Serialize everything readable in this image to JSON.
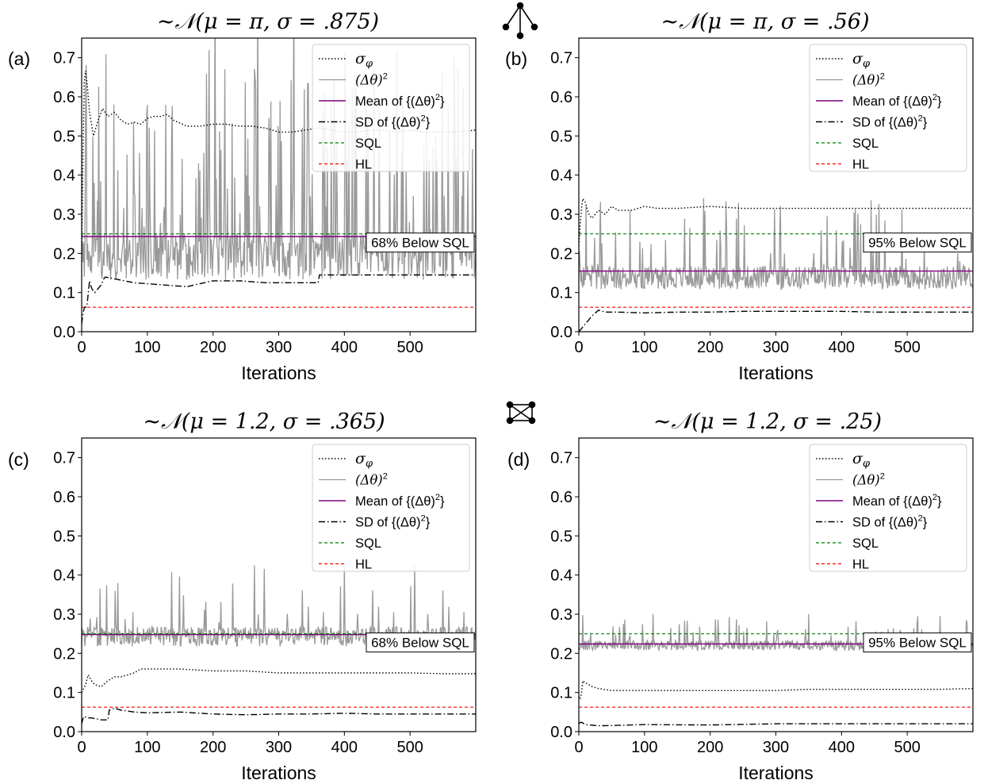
{
  "chart_data": [
    {
      "type": "line",
      "panel_label": "(a)",
      "title": "∼𝒩(μ = π, σ = .875)",
      "xlabel": "Iterations",
      "ylabel": "",
      "xlim": [
        0,
        600
      ],
      "ylim": [
        0.0,
        0.75
      ],
      "xticks": [
        0,
        100,
        200,
        300,
        400,
        500
      ],
      "yticks": [
        0.0,
        0.1,
        0.2,
        0.3,
        0.4,
        0.5,
        0.6,
        0.7
      ],
      "legend_position": "top-right",
      "annotation": "68% Below SQL",
      "constants": {
        "mean": 0.243,
        "sql": 0.25,
        "hl": 0.0625
      },
      "noise": {
        "base": 0.155,
        "amp": 0.12,
        "spike": 0.5,
        "spikeProb": 0.22,
        "seed": 11
      },
      "series": [
        {
          "name": "σ_φ",
          "style": "dotted",
          "color": "#000000",
          "x": [
            0,
            3,
            5,
            8,
            12,
            18,
            25,
            32,
            40,
            50,
            60,
            70,
            80,
            90,
            100,
            110,
            120,
            130,
            140,
            160,
            180,
            200,
            220,
            240,
            260,
            280,
            300,
            320,
            340,
            360,
            380,
            400,
            420,
            440,
            460,
            480,
            500,
            520,
            540,
            560,
            580,
            600
          ],
          "y": [
            0.18,
            0.6,
            0.68,
            0.64,
            0.56,
            0.5,
            0.54,
            0.57,
            0.55,
            0.56,
            0.54,
            0.53,
            0.535,
            0.53,
            0.545,
            0.55,
            0.55,
            0.555,
            0.54,
            0.525,
            0.525,
            0.53,
            0.53,
            0.525,
            0.525,
            0.52,
            0.51,
            0.51,
            0.515,
            0.52,
            0.515,
            0.51,
            0.51,
            0.515,
            0.515,
            0.51,
            0.515,
            0.51,
            0.51,
            0.51,
            0.512,
            0.515
          ]
        },
        {
          "name": "(Δθ)²",
          "style": "noise",
          "color": "#999999"
        },
        {
          "name": "Mean of {(Δθ)²}",
          "style": "solid",
          "color": "#800080",
          "constant": 0.243
        },
        {
          "name": "SD of {(Δθ)²}",
          "style": "dashdot",
          "color": "#000000",
          "x": [
            0,
            3,
            8,
            12,
            15,
            20,
            30,
            35,
            50,
            80,
            120,
            160,
            200,
            240,
            280,
            320,
            360,
            362,
            380,
            400,
            440,
            480,
            520,
            560,
            600
          ],
          "y": [
            0.02,
            0.06,
            0.065,
            0.13,
            0.11,
            0.1,
            0.12,
            0.14,
            0.135,
            0.125,
            0.12,
            0.115,
            0.13,
            0.13,
            0.125,
            0.125,
            0.125,
            0.145,
            0.145,
            0.145,
            0.145,
            0.145,
            0.145,
            0.145,
            0.145
          ]
        },
        {
          "name": "SQL",
          "style": "dashed",
          "color": "#008000",
          "constant": 0.25
        },
        {
          "name": "HL",
          "style": "dashed",
          "color": "#ff0000",
          "constant": 0.0625
        }
      ]
    },
    {
      "type": "line",
      "panel_label": "(b)",
      "title": "∼𝒩(μ = π, σ = .56)",
      "xlabel": "Iterations",
      "ylabel": "",
      "xlim": [
        0,
        600
      ],
      "ylim": [
        0.0,
        0.75
      ],
      "xticks": [
        0,
        100,
        200,
        300,
        400,
        500
      ],
      "yticks": [
        0.0,
        0.1,
        0.2,
        0.3,
        0.4,
        0.5,
        0.6,
        0.7
      ],
      "legend_position": "top-right",
      "annotation": "95% Below SQL",
      "constants": {
        "mean": 0.155,
        "sql": 0.25,
        "hl": 0.0625
      },
      "noise": {
        "base": 0.12,
        "amp": 0.06,
        "spike": 0.2,
        "spikeProb": 0.1,
        "seed": 23
      },
      "series": [
        {
          "name": "σ_φ",
          "style": "dotted",
          "color": "#000000",
          "x": [
            0,
            3,
            6,
            10,
            15,
            20,
            30,
            40,
            50,
            60,
            80,
            100,
            120,
            150,
            200,
            250,
            300,
            350,
            400,
            450,
            500,
            550,
            600
          ],
          "y": [
            0.22,
            0.3,
            0.34,
            0.33,
            0.3,
            0.29,
            0.31,
            0.3,
            0.32,
            0.31,
            0.31,
            0.32,
            0.315,
            0.315,
            0.32,
            0.315,
            0.315,
            0.315,
            0.315,
            0.315,
            0.315,
            0.315,
            0.315
          ]
        },
        {
          "name": "(Δθ)²",
          "style": "noise",
          "color": "#999999"
        },
        {
          "name": "Mean of {(Δθ)²}",
          "style": "solid",
          "color": "#800080",
          "constant": 0.155
        },
        {
          "name": "SD of {(Δθ)²}",
          "style": "dashdot",
          "color": "#000000",
          "x": [
            0,
            5,
            10,
            20,
            30,
            40,
            60,
            100,
            150,
            200,
            250,
            300,
            350,
            400,
            450,
            500,
            550,
            600
          ],
          "y": [
            0.0,
            0.01,
            0.02,
            0.04,
            0.055,
            0.05,
            0.05,
            0.048,
            0.05,
            0.05,
            0.052,
            0.052,
            0.052,
            0.052,
            0.05,
            0.05,
            0.05,
            0.05
          ]
        },
        {
          "name": "SQL",
          "style": "dashed",
          "color": "#008000",
          "constant": 0.25
        },
        {
          "name": "HL",
          "style": "dashed",
          "color": "#ff0000",
          "constant": 0.0625
        }
      ]
    },
    {
      "type": "line",
      "panel_label": "(c)",
      "title": "∼𝒩(μ = 1.2, σ = .365)",
      "xlabel": "Iterations",
      "ylabel": "",
      "xlim": [
        0,
        600
      ],
      "ylim": [
        0.0,
        0.75
      ],
      "xticks": [
        0,
        100,
        200,
        300,
        400,
        500
      ],
      "yticks": [
        0.0,
        0.1,
        0.2,
        0.3,
        0.4,
        0.5,
        0.6,
        0.7
      ],
      "legend_position": "top-right",
      "annotation": "68% Below SQL",
      "constants": {
        "mean": 0.248,
        "sql": 0.25,
        "hl": 0.0625
      },
      "noise": {
        "base": 0.228,
        "amp": 0.05,
        "spike": 0.17,
        "spikeProb": 0.1,
        "seed": 37
      },
      "series": [
        {
          "name": "σ_φ",
          "style": "dotted",
          "color": "#000000",
          "x": [
            0,
            3,
            6,
            10,
            15,
            20,
            30,
            40,
            50,
            60,
            70,
            80,
            90,
            100,
            150,
            200,
            250,
            300,
            350,
            400,
            450,
            500,
            550,
            600
          ],
          "y": [
            0.1,
            0.11,
            0.12,
            0.145,
            0.13,
            0.12,
            0.115,
            0.13,
            0.14,
            0.14,
            0.145,
            0.15,
            0.16,
            0.16,
            0.16,
            0.155,
            0.155,
            0.15,
            0.15,
            0.15,
            0.15,
            0.15,
            0.148,
            0.148
          ]
        },
        {
          "name": "(Δθ)²",
          "style": "noise",
          "color": "#999999"
        },
        {
          "name": "Mean of {(Δθ)²}",
          "style": "solid",
          "color": "#800080",
          "constant": 0.248
        },
        {
          "name": "SD of {(Δθ)²}",
          "style": "dashdot",
          "color": "#000000",
          "x": [
            0,
            3,
            8,
            15,
            30,
            40,
            42,
            50,
            60,
            80,
            100,
            150,
            200,
            250,
            300,
            350,
            400,
            450,
            500,
            550,
            600
          ],
          "y": [
            0.02,
            0.04,
            0.035,
            0.035,
            0.03,
            0.03,
            0.055,
            0.06,
            0.055,
            0.05,
            0.048,
            0.05,
            0.045,
            0.043,
            0.045,
            0.045,
            0.047,
            0.045,
            0.045,
            0.045,
            0.045
          ]
        },
        {
          "name": "SQL",
          "style": "dashed",
          "color": "#008000",
          "constant": 0.25
        },
        {
          "name": "HL",
          "style": "dashed",
          "color": "#ff0000",
          "constant": 0.0625
        }
      ]
    },
    {
      "type": "line",
      "panel_label": "(d)",
      "title": "∼𝒩(μ = 1.2, σ = .25)",
      "xlabel": "Iterations",
      "ylabel": "",
      "xlim": [
        0,
        600
      ],
      "ylim": [
        0.0,
        0.75
      ],
      "xticks": [
        0,
        100,
        200,
        300,
        400,
        500
      ],
      "yticks": [
        0.0,
        0.1,
        0.2,
        0.3,
        0.4,
        0.5,
        0.6,
        0.7
      ],
      "legend_position": "top-right",
      "annotation": "95% Below SQL",
      "constants": {
        "mean": 0.224,
        "sql": 0.25,
        "hl": 0.0625
      },
      "noise": {
        "base": 0.213,
        "amp": 0.025,
        "spike": 0.07,
        "spikeProb": 0.08,
        "seed": 53
      },
      "series": [
        {
          "name": "σ_φ",
          "style": "dotted",
          "color": "#000000",
          "x": [
            0,
            3,
            6,
            10,
            20,
            30,
            50,
            100,
            150,
            200,
            250,
            300,
            350,
            400,
            450,
            500,
            550,
            600
          ],
          "y": [
            0.09,
            0.08,
            0.13,
            0.125,
            0.115,
            0.11,
            0.105,
            0.105,
            0.105,
            0.105,
            0.105,
            0.105,
            0.108,
            0.108,
            0.108,
            0.108,
            0.108,
            0.11
          ]
        },
        {
          "name": "(Δθ)²",
          "style": "noise",
          "color": "#999999"
        },
        {
          "name": "Mean of {(Δθ)²}",
          "style": "solid",
          "color": "#800080",
          "constant": 0.224
        },
        {
          "name": "SD of {(Δθ)²}",
          "style": "dashdot",
          "color": "#000000",
          "x": [
            0,
            3,
            10,
            30,
            60,
            100,
            200,
            300,
            400,
            500,
            600
          ],
          "y": [
            0.02,
            0.025,
            0.018,
            0.015,
            0.016,
            0.018,
            0.017,
            0.02,
            0.02,
            0.02,
            0.02
          ]
        },
        {
          "name": "SQL",
          "style": "dashed",
          "color": "#008000",
          "constant": 0.25
        },
        {
          "name": "HL",
          "style": "dashed",
          "color": "#ff0000",
          "constant": 0.0625
        }
      ]
    }
  ],
  "legend_labels": {
    "sigma_prefix": "σ",
    "sigma_sub": "φ",
    "delta": "(Δθ)",
    "sq": "2",
    "mean": "Mean of {(Δθ)",
    "sd": "SD of {(Δθ)",
    "close": "}",
    "sql": "SQL",
    "hl": "HL"
  },
  "icons": {
    "top": "tree-graph-icon",
    "bottom": "complete-graph-icon"
  }
}
